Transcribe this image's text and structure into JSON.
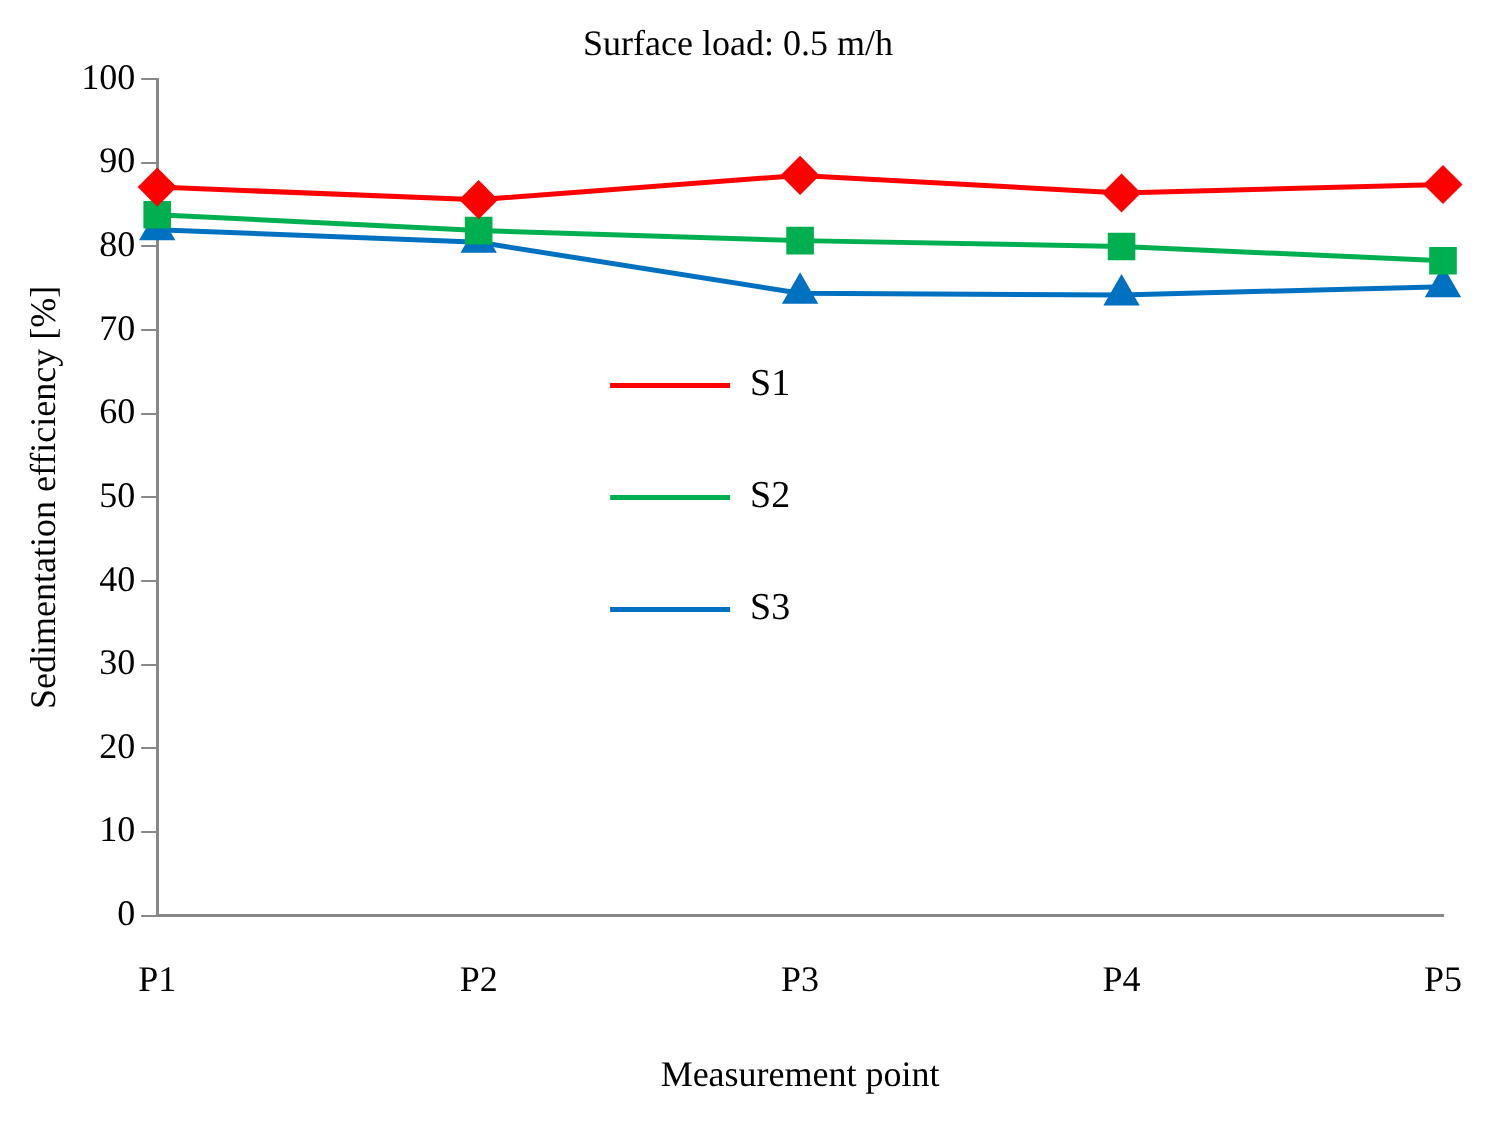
{
  "chart_data": {
    "type": "line",
    "title": "Surface load: 0.5 m/h",
    "xlabel": "Measurement point",
    "ylabel": "Sedimentation efficiency [%]",
    "categories": [
      "P1",
      "P2",
      "P3",
      "P4",
      "P5"
    ],
    "series": [
      {
        "name": "S1",
        "color": "#ff0000",
        "marker": "diamond",
        "values": [
          87.1,
          85.6,
          88.5,
          86.4,
          87.4
        ]
      },
      {
        "name": "S2",
        "color": "#00b050",
        "marker": "square",
        "values": [
          83.8,
          81.9,
          80.7,
          80.0,
          78.3
        ]
      },
      {
        "name": "S3",
        "color": "#0070c0",
        "marker": "triangle",
        "values": [
          82.0,
          80.5,
          74.4,
          74.2,
          75.2
        ]
      }
    ],
    "ylim": [
      0,
      100
    ],
    "yticks": [
      0,
      10,
      20,
      30,
      40,
      50,
      60,
      70,
      80,
      90,
      100
    ],
    "grid": false,
    "legend": "center"
  }
}
